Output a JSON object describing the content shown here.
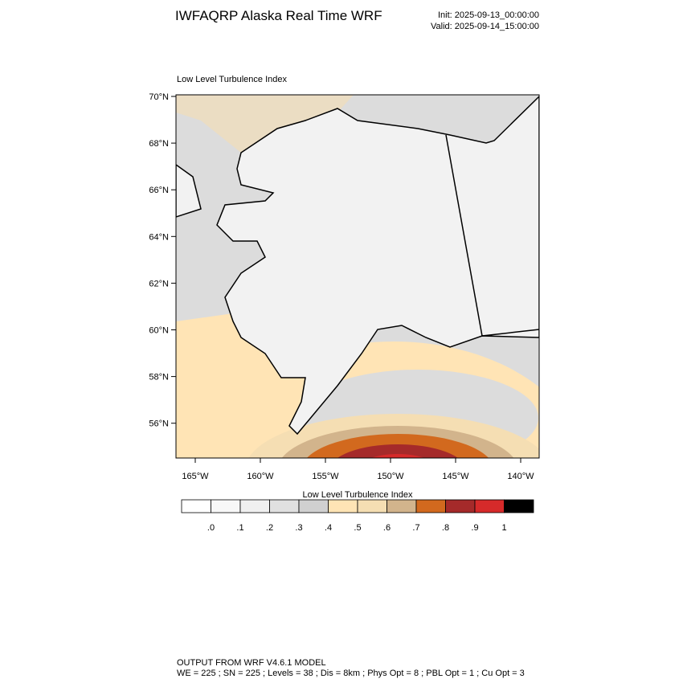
{
  "header": {
    "title": "IWFAQRP Alaska Real Time WRF",
    "init": "Init: 2025-09-13_00:00:00",
    "valid": "Valid: 2025-09-14_15:00:00"
  },
  "map": {
    "label": "Low Level Turbulence Index",
    "lat_labels": [
      "70°N",
      "68°N",
      "66°N",
      "64°N",
      "62°N",
      "60°N",
      "58°N",
      "56°N"
    ],
    "lon_labels": [
      "165°W",
      "160°W",
      "155°W",
      "150°W",
      "145°W",
      "140°W"
    ]
  },
  "colorbar": {
    "title": "Low Level Turbulence Index",
    "labels": [
      ".0",
      ".1",
      ".2",
      ".3",
      ".4",
      ".5",
      ".6",
      ".7",
      ".8",
      ".9",
      "1"
    ],
    "colors": [
      "#ffffff",
      "#f8f8f8",
      "#f0f0f0",
      "#e0e0e0",
      "#d0d0d0",
      "#ffe4b5",
      "#f5deb3",
      "#d2b48c",
      "#d2691e",
      "#a52a2a",
      "#d62a2a",
      "#000000"
    ]
  },
  "footer": {
    "line1": "OUTPUT FROM WRF V4.6.1 MODEL",
    "line2": "WE = 225 ; SN = 225 ; Levels = 38 ; Dis = 8km ; Phys Opt = 8 ; PBL Opt = 1 ; Cu Opt = 3"
  }
}
